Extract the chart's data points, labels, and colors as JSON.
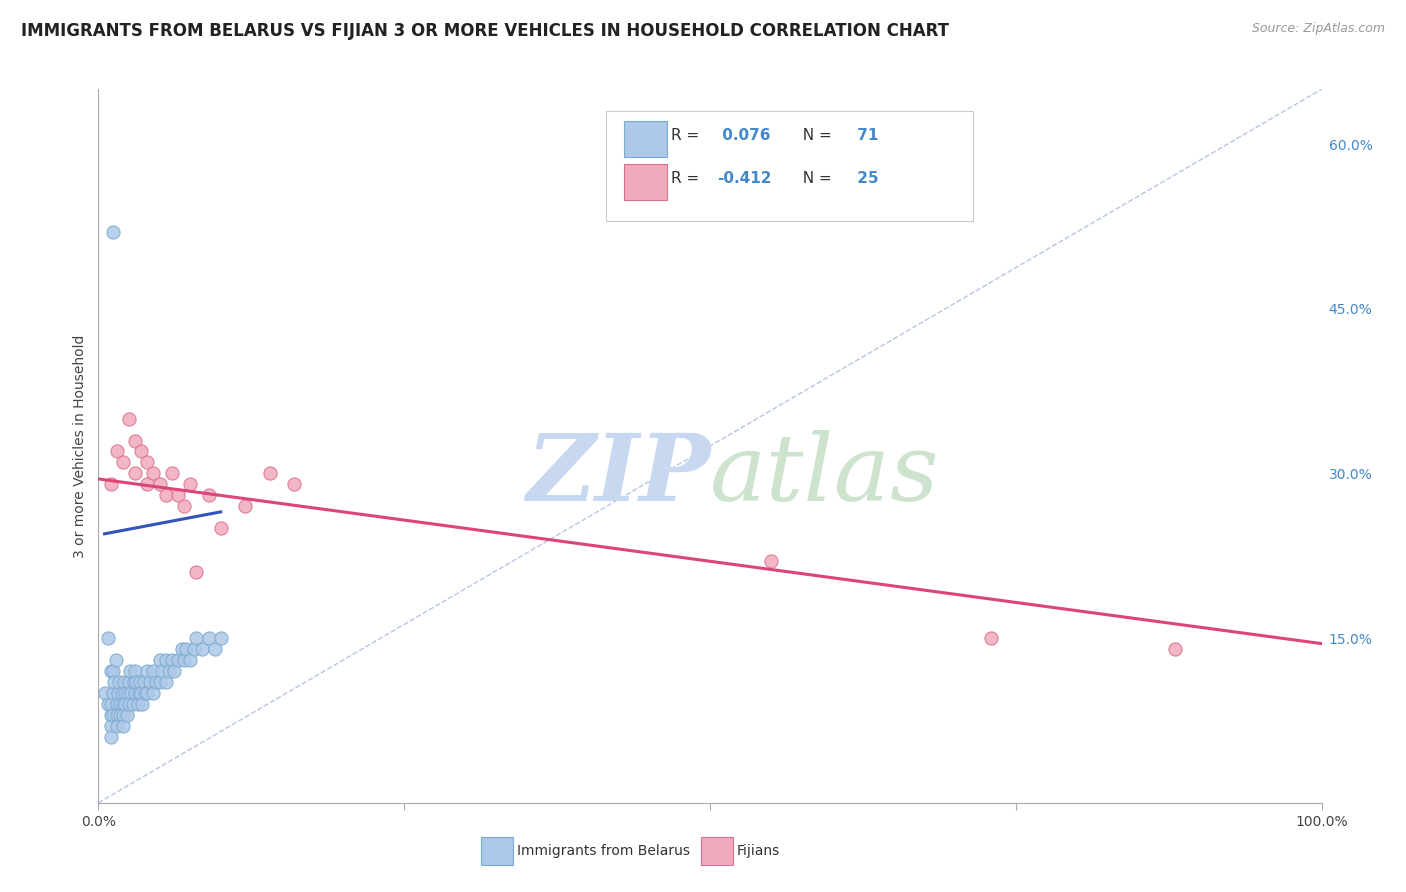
{
  "title": "IMMIGRANTS FROM BELARUS VS FIJIAN 3 OR MORE VEHICLES IN HOUSEHOLD CORRELATION CHART",
  "source": "Source: ZipAtlas.com",
  "ylabel": "3 or more Vehicles in Household",
  "yticks": [
    0.15,
    0.3,
    0.45,
    0.6
  ],
  "ytick_labels": [
    "15.0%",
    "30.0%",
    "45.0%",
    "60.0%"
  ],
  "xrange": [
    0.0,
    1.0
  ],
  "yrange": [
    0.0,
    0.65
  ],
  "legend_R1": "R = ",
  "legend_R1val": " 0.076",
  "legend_N1": "  N = ",
  "legend_N1val": " 71",
  "legend_R2": "R = ",
  "legend_R2val": "-0.412",
  "legend_N2": "  N = ",
  "legend_N2val": " 25",
  "legend_label1": "Immigrants from Belarus",
  "legend_label2": "Fijians",
  "R_blue": 0.076,
  "R_pink": -0.412,
  "background_color": "#ffffff",
  "grid_color": "#cccccc",
  "blue_dot_fill": "#adc8e8",
  "blue_dot_edge": "#7baad0",
  "pink_dot_fill": "#f0aabb",
  "pink_dot_edge": "#d87090",
  "blue_line_color": "#3355bb",
  "pink_line_color": "#dd4477",
  "dashed_line_color": "#aabbdd",
  "right_tick_color": "#4488cc",
  "watermark_zip_color": "#c8d8f0",
  "watermark_atlas_color": "#b8d8b8",
  "blue_x": [
    0.005,
    0.008,
    0.008,
    0.01,
    0.01,
    0.01,
    0.01,
    0.01,
    0.012,
    0.012,
    0.012,
    0.013,
    0.014,
    0.015,
    0.015,
    0.015,
    0.016,
    0.017,
    0.018,
    0.018,
    0.019,
    0.02,
    0.02,
    0.02,
    0.021,
    0.022,
    0.022,
    0.023,
    0.024,
    0.025,
    0.025,
    0.026,
    0.027,
    0.028,
    0.029,
    0.03,
    0.03,
    0.031,
    0.032,
    0.033,
    0.034,
    0.035,
    0.036,
    0.037,
    0.038,
    0.04,
    0.04,
    0.042,
    0.045,
    0.045,
    0.047,
    0.05,
    0.05,
    0.052,
    0.055,
    0.055,
    0.058,
    0.06,
    0.062,
    0.065,
    0.068,
    0.07,
    0.072,
    0.075,
    0.078,
    0.08,
    0.085,
    0.09,
    0.095,
    0.1,
    0.012
  ],
  "blue_y": [
    0.1,
    0.15,
    0.09,
    0.08,
    0.12,
    0.09,
    0.07,
    0.06,
    0.1,
    0.12,
    0.08,
    0.11,
    0.13,
    0.09,
    0.08,
    0.07,
    0.1,
    0.11,
    0.09,
    0.08,
    0.1,
    0.09,
    0.08,
    0.07,
    0.11,
    0.1,
    0.09,
    0.08,
    0.1,
    0.09,
    0.11,
    0.12,
    0.1,
    0.09,
    0.11,
    0.1,
    0.12,
    0.11,
    0.09,
    0.1,
    0.11,
    0.1,
    0.09,
    0.11,
    0.1,
    0.12,
    0.1,
    0.11,
    0.12,
    0.1,
    0.11,
    0.13,
    0.11,
    0.12,
    0.13,
    0.11,
    0.12,
    0.13,
    0.12,
    0.13,
    0.14,
    0.13,
    0.14,
    0.13,
    0.14,
    0.15,
    0.14,
    0.15,
    0.14,
    0.15,
    0.52
  ],
  "pink_x": [
    0.01,
    0.015,
    0.02,
    0.025,
    0.03,
    0.03,
    0.035,
    0.04,
    0.04,
    0.045,
    0.05,
    0.055,
    0.06,
    0.065,
    0.07,
    0.075,
    0.08,
    0.09,
    0.1,
    0.12,
    0.14,
    0.16,
    0.55,
    0.73,
    0.88
  ],
  "pink_y": [
    0.29,
    0.32,
    0.31,
    0.35,
    0.3,
    0.33,
    0.32,
    0.31,
    0.29,
    0.3,
    0.29,
    0.28,
    0.3,
    0.28,
    0.27,
    0.29,
    0.21,
    0.28,
    0.25,
    0.27,
    0.3,
    0.29,
    0.22,
    0.15,
    0.14
  ],
  "blue_trendline_x": [
    0.005,
    0.1
  ],
  "blue_trendline_y": [
    0.245,
    0.265
  ],
  "pink_trendline_x": [
    0.0,
    1.0
  ],
  "pink_trendline_y": [
    0.295,
    0.145
  ]
}
